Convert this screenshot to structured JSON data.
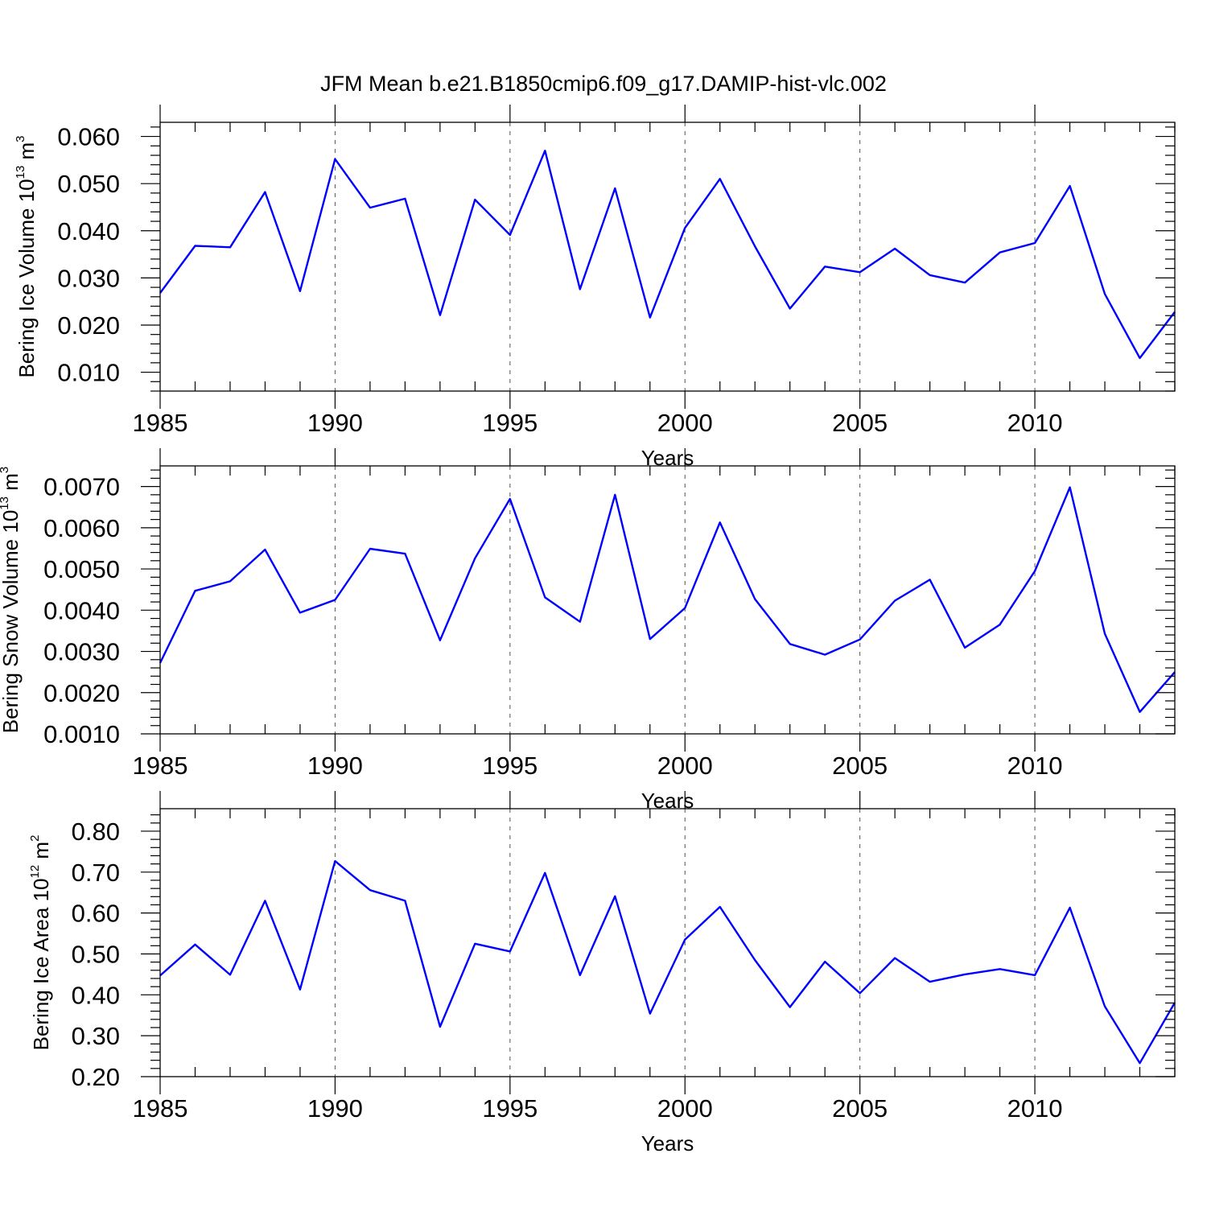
{
  "figure": {
    "title": "JFM Mean b.e21.B1850cmip6.f09_g17.DAMIP-hist-vlc.002",
    "line_color": "#0000ff"
  },
  "chart_data": [
    {
      "type": "line",
      "title": "",
      "xlabel": "Years",
      "ylabel": "Bering Ice Volume 10",
      "ylabel_exp": "13",
      "ylabel_unit": " m",
      "ylabel_unit_exp": "3",
      "xlim": [
        1985,
        2014
      ],
      "ylim": [
        0.006,
        0.063
      ],
      "xticks": [
        1985,
        1990,
        1995,
        2000,
        2005,
        2010
      ],
      "xtick_labels": [
        "1985",
        "1990",
        "1995",
        "2000",
        "2005",
        "2010"
      ],
      "yticks": [
        0.01,
        0.02,
        0.03,
        0.04,
        0.05,
        0.06
      ],
      "ytick_labels": [
        "0.010",
        "0.020",
        "0.030",
        "0.040",
        "0.050",
        "0.060"
      ],
      "x": [
        1985,
        1986,
        1987,
        1988,
        1989,
        1990,
        1991,
        1992,
        1993,
        1994,
        1995,
        1996,
        1997,
        1998,
        1999,
        2000,
        2001,
        2002,
        2003,
        2004,
        2005,
        2006,
        2007,
        2008,
        2009,
        2010,
        2011,
        2012,
        2013,
        2014
      ],
      "series": [
        {
          "name": "Bering Ice Volume",
          "values": [
            0.0268,
            0.0368,
            0.0365,
            0.0482,
            0.0272,
            0.0552,
            0.0449,
            0.0468,
            0.0221,
            0.0466,
            0.0391,
            0.057,
            0.0276,
            0.049,
            0.0216,
            0.0406,
            0.051,
            0.0367,
            0.0235,
            0.0324,
            0.0312,
            0.0362,
            0.0306,
            0.029,
            0.0354,
            0.0374,
            0.0495,
            0.0266,
            0.013,
            0.0228
          ]
        }
      ]
    },
    {
      "type": "line",
      "title": "",
      "xlabel": "Years",
      "ylabel": "Bering Snow Volume 10",
      "ylabel_exp": "13",
      "ylabel_unit": " m",
      "ylabel_unit_exp": "3",
      "xlim": [
        1985,
        2014
      ],
      "ylim": [
        0.001,
        0.0075
      ],
      "xticks": [
        1985,
        1990,
        1995,
        2000,
        2005,
        2010
      ],
      "xtick_labels": [
        "1985",
        "1990",
        "1995",
        "2000",
        "2005",
        "2010"
      ],
      "yticks": [
        0.001,
        0.002,
        0.003,
        0.004,
        0.005,
        0.006,
        0.007
      ],
      "ytick_labels": [
        "0.0010",
        "0.0020",
        "0.0030",
        "0.0040",
        "0.0050",
        "0.0060",
        "0.0070"
      ],
      "x": [
        1985,
        1986,
        1987,
        1988,
        1989,
        1990,
        1991,
        1992,
        1993,
        1994,
        1995,
        1996,
        1997,
        1998,
        1999,
        2000,
        2001,
        2002,
        2003,
        2004,
        2005,
        2006,
        2007,
        2008,
        2009,
        2010,
        2011,
        2012,
        2013,
        2014
      ],
      "series": [
        {
          "name": "Bering Snow Volume",
          "values": [
            0.00272,
            0.00447,
            0.0047,
            0.00547,
            0.00394,
            0.00425,
            0.00549,
            0.00537,
            0.00327,
            0.00526,
            0.0067,
            0.00431,
            0.00372,
            0.0068,
            0.0033,
            0.00405,
            0.00613,
            0.00427,
            0.00318,
            0.00292,
            0.00329,
            0.00423,
            0.00474,
            0.00309,
            0.00365,
            0.00495,
            0.00698,
            0.00343,
            0.00153,
            0.0025
          ]
        }
      ]
    },
    {
      "type": "line",
      "title": "",
      "xlabel": "Years",
      "ylabel": "Bering Ice Area 10",
      "ylabel_exp": "12",
      "ylabel_unit": " m",
      "ylabel_unit_exp": "2",
      "xlim": [
        1985,
        2014
      ],
      "ylim": [
        0.2,
        0.855
      ],
      "xticks": [
        1985,
        1990,
        1995,
        2000,
        2005,
        2010
      ],
      "xtick_labels": [
        "1985",
        "1990",
        "1995",
        "2000",
        "2005",
        "2010"
      ],
      "yticks": [
        0.2,
        0.3,
        0.4,
        0.5,
        0.6,
        0.7,
        0.8
      ],
      "ytick_labels": [
        "0.20",
        "0.30",
        "0.40",
        "0.50",
        "0.60",
        "0.70",
        "0.80"
      ],
      "x": [
        1985,
        1986,
        1987,
        1988,
        1989,
        1990,
        1991,
        1992,
        1993,
        1994,
        1995,
        1996,
        1997,
        1998,
        1999,
        2000,
        2001,
        2002,
        2003,
        2004,
        2005,
        2006,
        2007,
        2008,
        2009,
        2010,
        2011,
        2012,
        2013,
        2014
      ],
      "series": [
        {
          "name": "Bering Ice Area",
          "values": [
            0.447,
            0.523,
            0.449,
            0.63,
            0.413,
            0.727,
            0.656,
            0.63,
            0.322,
            0.525,
            0.506,
            0.698,
            0.448,
            0.641,
            0.354,
            0.535,
            0.615,
            0.485,
            0.37,
            0.481,
            0.404,
            0.49,
            0.432,
            0.45,
            0.463,
            0.448,
            0.613,
            0.372,
            0.233,
            0.381
          ]
        }
      ]
    }
  ]
}
